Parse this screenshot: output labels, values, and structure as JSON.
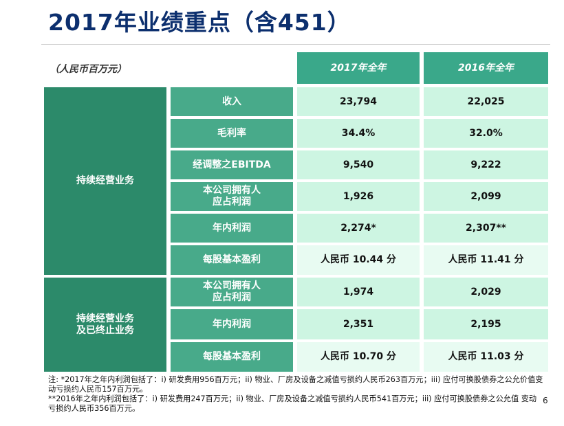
{
  "title": "2017年业绩重点（含451）",
  "unit_label": "（人民币百万元）",
  "columns": [
    "2017年全年",
    "2016年全年"
  ],
  "groups": [
    {
      "label": "持续经营业务"
    },
    {
      "label": "持续经营业务\n及已终止业务"
    }
  ],
  "rows": [
    {
      "label": "收入",
      "v2017": "23,794",
      "v2016": "22,025"
    },
    {
      "label": "毛利率",
      "v2017": "34.4%",
      "v2016": "32.0%"
    },
    {
      "label": "经调整之EBITDA",
      "v2017": "9,540",
      "v2016": "9,222"
    },
    {
      "label": "本公司拥有人\n应占利润",
      "v2017": "1,926",
      "v2016": "2,099"
    },
    {
      "label": "年内利润",
      "v2017": "2,274*",
      "v2016": "2,307**"
    },
    {
      "label": "每股基本盈利",
      "v2017": "人民币 10.44 分",
      "v2016": "人民币 11.41 分"
    },
    {
      "label": "本公司拥有人\n应占利润",
      "v2017": "1,974",
      "v2016": "2,029"
    },
    {
      "label": "年内利润",
      "v2017": "2,351",
      "v2016": "2,195"
    },
    {
      "label": "每股基本盈利",
      "v2017": "人民币 10.70 分",
      "v2016": "人民币 11.03 分"
    }
  ],
  "notes": [
    "注: *2017年之年内利润包括了：i) 研发费用956百万元；ii) 物业、厂房及设备之减值亏损约人民币263百万元；iii) 应付可换股债券之公允价值变动亏损约人民币157百万元。",
    " **2016年之年内利润包括了：i) 研发费用247百万元；ii) 物业、厂房及设备之减值亏损约人民币541百万元；iii) 应付可换股债券之公允值 变动亏损约人民币356百万元。"
  ],
  "page_number": "6",
  "colors": {
    "title": "#0c2f6e",
    "header_bg": "#3aa88a",
    "group_bg": "#2c8a6a",
    "label_bg": "#48aa8a",
    "value_bg": "#cdf5e2"
  }
}
